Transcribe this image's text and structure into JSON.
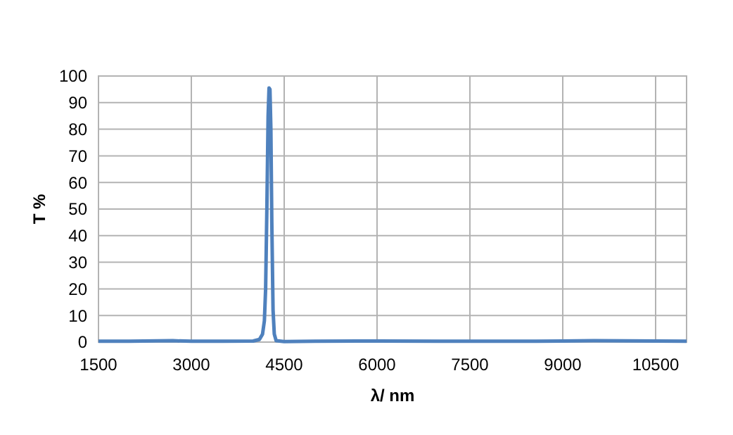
{
  "chart_data": {
    "type": "line",
    "xlabel": "λ/ nm",
    "ylabel": "T %",
    "series": [
      {
        "color": "#4f81bd",
        "x": [
          1500,
          2000,
          2700,
          3000,
          3500,
          4000,
          4100,
          4150,
          4180,
          4200,
          4220,
          4240,
          4255,
          4270,
          4285,
          4300,
          4320,
          4340,
          4370,
          4500,
          5000,
          6000,
          7000,
          8000,
          9000,
          9500,
          10500,
          11000
        ],
        "values": [
          0.3,
          0.3,
          0.5,
          0.3,
          0.3,
          0.4,
          1,
          3,
          8,
          20,
          50,
          85,
          95.5,
          95,
          80,
          45,
          12,
          3,
          0.5,
          0.2,
          0.3,
          0.4,
          0.3,
          0.3,
          0.4,
          0.5,
          0.4,
          0.3
        ]
      }
    ],
    "xlim": [
      1500,
      11000
    ],
    "xticks": [
      1500,
      3000,
      4500,
      6000,
      7500,
      9000,
      10500
    ],
    "ylim": [
      0,
      100
    ],
    "yticks": [
      0,
      10,
      20,
      30,
      40,
      50,
      60,
      70,
      80,
      90,
      100
    ],
    "grid": true,
    "marker": "none",
    "line_style": "solid"
  }
}
